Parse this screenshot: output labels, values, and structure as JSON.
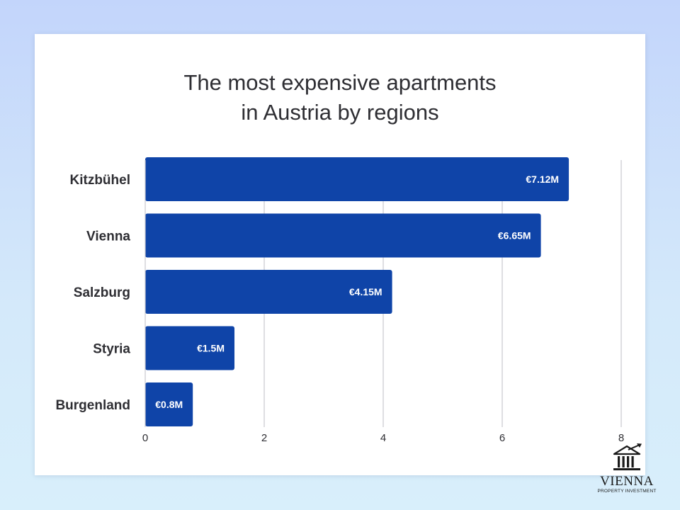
{
  "chart_data": {
    "type": "bar",
    "orientation": "horizontal",
    "title": [
      "The most expensive apartments",
      "in Austria by regions"
    ],
    "categories": [
      "Kitzbühel",
      "Vienna",
      "Salzburg",
      "Styria",
      "Burgenland"
    ],
    "values": [
      7.12,
      6.65,
      4.15,
      1.5,
      0.8
    ],
    "value_labels": [
      "€7.12M",
      "€6.65M",
      "€4.15M",
      "€1.5M",
      "€0.8M"
    ],
    "xticks": [
      "0",
      "2",
      "4",
      "6",
      "8"
    ],
    "xlim": [
      0,
      8
    ],
    "grid": "vertical",
    "bar_color": "#0f44a8",
    "grid_color": "#c9c9cf"
  },
  "brand": {
    "logo_icon": "building-arrow-icon",
    "name": "VIENNA",
    "tagline": "PROPERTY INVESTMENT"
  }
}
